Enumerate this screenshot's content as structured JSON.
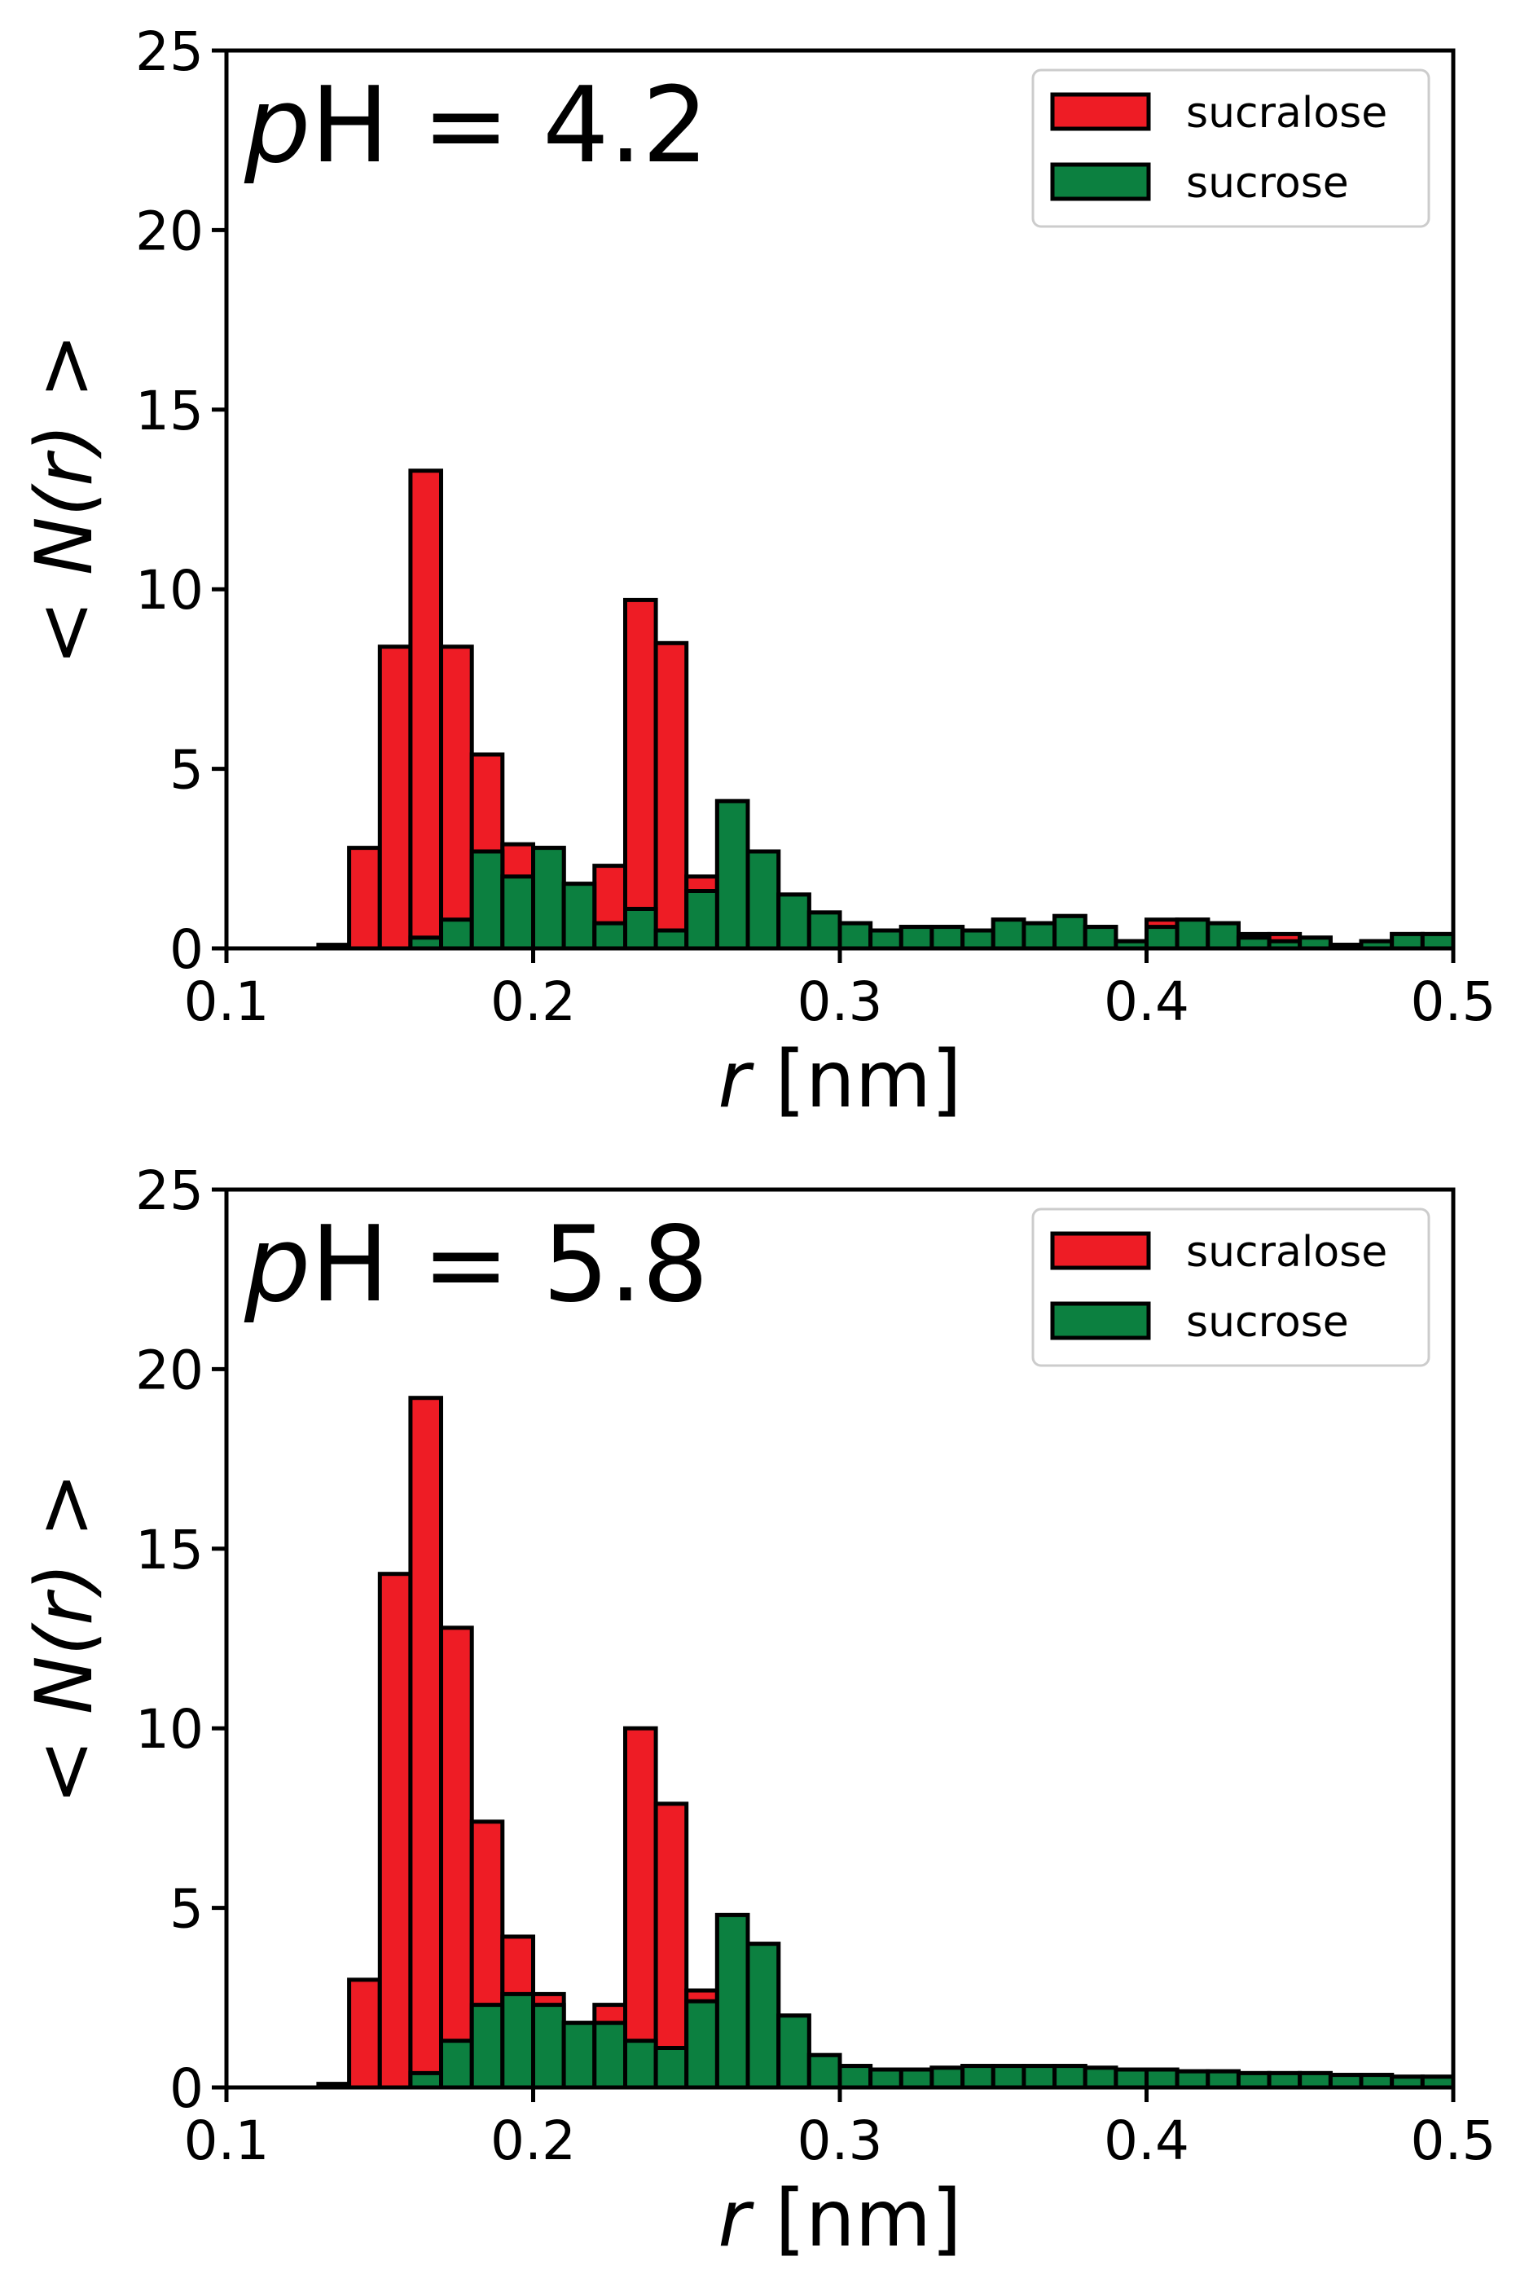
{
  "colors": {
    "sucralose": "#ee1c25",
    "sucrose": "#0c8040",
    "edge": "#000000"
  },
  "chart_data": [
    {
      "type": "bar",
      "title": "pH = 4.2",
      "title_italic": "p",
      "title_rest": "H = 4.2",
      "xlabel_italic": "r",
      "xlabel_rest": " [nm]",
      "ylabel": "< N(r) >",
      "xlim": [
        0.1,
        0.5
      ],
      "ylim": [
        0,
        25
      ],
      "xticks": [
        "0.1",
        "0.2",
        "0.3",
        "0.4",
        "0.5"
      ],
      "yticks": [
        "0",
        "5",
        "10",
        "15",
        "20",
        "25"
      ],
      "legend_position": "top-right",
      "bin_width": 0.01,
      "bin_left_edges": [
        0.13,
        0.14,
        0.15,
        0.16,
        0.17,
        0.18,
        0.19,
        0.2,
        0.21,
        0.22,
        0.23,
        0.24,
        0.25,
        0.26,
        0.27,
        0.28,
        0.29,
        0.3,
        0.31,
        0.32,
        0.33,
        0.34,
        0.35,
        0.36,
        0.37,
        0.38,
        0.39,
        0.4,
        0.41,
        0.42,
        0.43,
        0.44,
        0.45,
        0.46,
        0.47,
        0.48,
        0.49
      ],
      "series": [
        {
          "name": "sucralose",
          "values": [
            0.1,
            2.8,
            8.4,
            13.3,
            8.4,
            5.4,
            2.9,
            2.8,
            1.8,
            2.3,
            9.7,
            8.5,
            2.0,
            4.1,
            2.7,
            1.5,
            1.0,
            0.7,
            0.5,
            0.6,
            0.6,
            0.5,
            0.8,
            0.7,
            0.9,
            0.6,
            0.2,
            0.8,
            0.8,
            0.7,
            0.4,
            0.4,
            0.3,
            0.1,
            0.2,
            0.4,
            0.4
          ]
        },
        {
          "name": "sucrose",
          "values": [
            0.0,
            0.0,
            0.0,
            0.3,
            0.8,
            2.7,
            2.0,
            2.8,
            1.8,
            0.7,
            1.1,
            0.5,
            1.6,
            4.1,
            2.7,
            1.5,
            1.0,
            0.7,
            0.5,
            0.6,
            0.6,
            0.5,
            0.8,
            0.7,
            0.9,
            0.6,
            0.2,
            0.6,
            0.8,
            0.7,
            0.3,
            0.2,
            0.3,
            0.1,
            0.2,
            0.4,
            0.4
          ]
        }
      ]
    },
    {
      "type": "bar",
      "title": "pH = 5.8",
      "title_italic": "p",
      "title_rest": "H = 5.8",
      "xlabel_italic": "r",
      "xlabel_rest": " [nm]",
      "ylabel": "< N(r) >",
      "xlim": [
        0.1,
        0.5
      ],
      "ylim": [
        0,
        25
      ],
      "xticks": [
        "0.1",
        "0.2",
        "0.3",
        "0.4",
        "0.5"
      ],
      "yticks": [
        "0",
        "5",
        "10",
        "15",
        "20",
        "25"
      ],
      "legend_position": "top-right",
      "bin_width": 0.01,
      "bin_left_edges": [
        0.13,
        0.14,
        0.15,
        0.16,
        0.17,
        0.18,
        0.19,
        0.2,
        0.21,
        0.22,
        0.23,
        0.24,
        0.25,
        0.26,
        0.27,
        0.28,
        0.29,
        0.3,
        0.31,
        0.32,
        0.33,
        0.34,
        0.35,
        0.36,
        0.37,
        0.38,
        0.39,
        0.4,
        0.41,
        0.42,
        0.43,
        0.44,
        0.45,
        0.46,
        0.47,
        0.48,
        0.49
      ],
      "series": [
        {
          "name": "sucralose",
          "values": [
            0.1,
            3.0,
            14.3,
            19.2,
            12.8,
            7.4,
            4.2,
            2.6,
            1.8,
            2.3,
            10.0,
            7.9,
            2.7,
            4.8,
            4.0,
            2.0,
            0.9,
            0.6,
            0.5,
            0.5,
            0.55,
            0.6,
            0.6,
            0.6,
            0.6,
            0.55,
            0.5,
            0.5,
            0.45,
            0.45,
            0.4,
            0.4,
            0.4,
            0.35,
            0.35,
            0.3,
            0.3
          ]
        },
        {
          "name": "sucrose",
          "values": [
            0.0,
            0.0,
            0.0,
            0.4,
            1.3,
            2.3,
            2.6,
            2.3,
            1.8,
            1.8,
            1.3,
            1.1,
            2.4,
            4.8,
            4.0,
            2.0,
            0.9,
            0.6,
            0.5,
            0.5,
            0.55,
            0.6,
            0.6,
            0.6,
            0.6,
            0.55,
            0.5,
            0.5,
            0.45,
            0.45,
            0.4,
            0.4,
            0.4,
            0.35,
            0.35,
            0.3,
            0.3
          ]
        }
      ]
    }
  ]
}
